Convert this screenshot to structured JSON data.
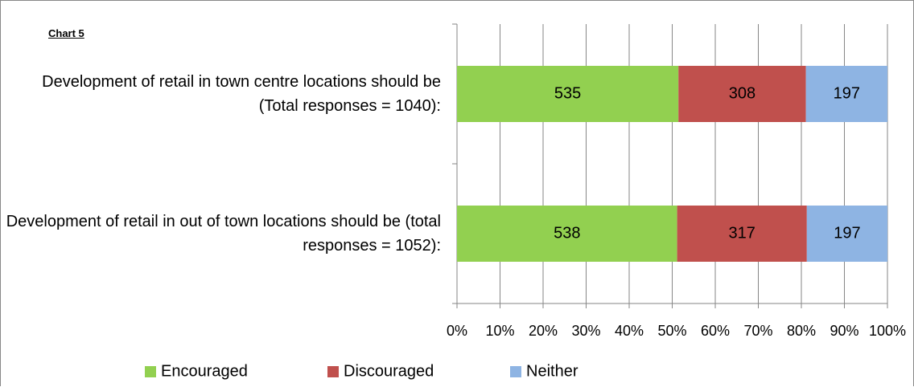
{
  "chart_data": {
    "type": "bar",
    "orientation": "horizontal",
    "stacking": "percent",
    "title": "Chart 5",
    "categories": [
      "Development of retail in town centre locations should be (Total responses = 1040):",
      "Development of retail in out of town locations should be (total responses = 1052):"
    ],
    "series": [
      {
        "name": "Encouraged",
        "color": "#92d050",
        "values": [
          535,
          538
        ]
      },
      {
        "name": "Discouraged",
        "color": "#c0504d",
        "values": [
          308,
          317
        ]
      },
      {
        "name": "Neither",
        "color": "#8eb4e3",
        "values": [
          197,
          197
        ]
      }
    ],
    "xlim": [
      0,
      100
    ],
    "xticks": [
      {
        "value": 0,
        "label": "0%"
      },
      {
        "value": 10,
        "label": "10%"
      },
      {
        "value": 20,
        "label": "20%"
      },
      {
        "value": 30,
        "label": "30%"
      },
      {
        "value": 40,
        "label": "40%"
      },
      {
        "value": 50,
        "label": "50%"
      },
      {
        "value": 60,
        "label": "60%"
      },
      {
        "value": 70,
        "label": "70%"
      },
      {
        "value": 80,
        "label": "80%"
      },
      {
        "value": 90,
        "label": "90%"
      },
      {
        "value": 100,
        "label": "100%"
      }
    ],
    "grid": true,
    "legend": "bottom"
  }
}
